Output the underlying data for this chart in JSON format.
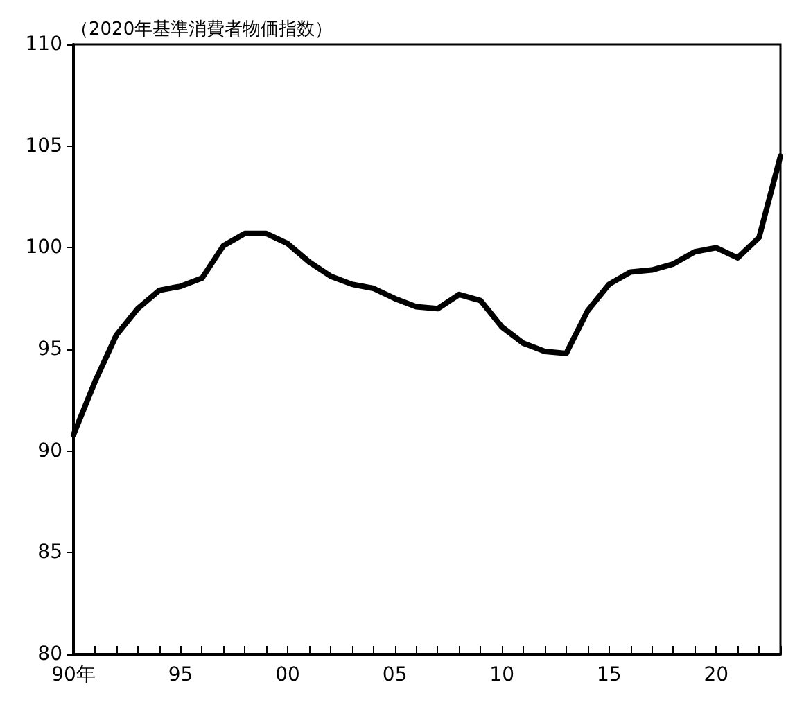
{
  "chart_data": {
    "type": "line",
    "title": "（2020年基準消費者物価指数）",
    "categories": [
      "90年",
      null,
      null,
      null,
      null,
      "95",
      null,
      null,
      null,
      null,
      "00",
      null,
      null,
      null,
      null,
      "05",
      null,
      null,
      null,
      null,
      "10",
      null,
      null,
      null,
      null,
      "15",
      null,
      null,
      null,
      null,
      "20",
      null,
      null,
      null
    ],
    "series": [
      {
        "color": "#000000",
        "values": [
          90.8,
          93.4,
          95.7,
          97.0,
          97.9,
          98.1,
          98.5,
          100.1,
          100.7,
          100.7,
          100.2,
          99.3,
          98.6,
          98.2,
          98.0,
          97.5,
          97.1,
          97.0,
          97.7,
          97.4,
          96.1,
          95.3,
          94.9,
          94.8,
          96.9,
          98.2,
          98.8,
          98.9,
          99.2,
          99.8,
          100.0,
          99.5,
          100.5,
          104.5
        ]
      }
    ],
    "ylim": [
      80,
      110
    ],
    "yticks": [
      80,
      85,
      90,
      95,
      100,
      105,
      110
    ],
    "grid": false,
    "marker": "none",
    "line_style": "solid"
  }
}
